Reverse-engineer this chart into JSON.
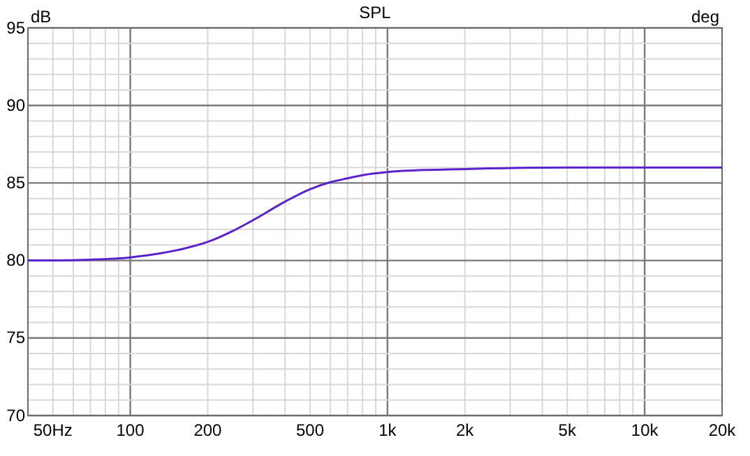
{
  "chart_data": {
    "type": "line",
    "title": "SPL",
    "ylabel": "dB",
    "y2label": "deg",
    "log": "x",
    "grid": true,
    "marker": "none",
    "line_style": "solid",
    "xlim": [
      40,
      20000
    ],
    "ylim": [
      70,
      95
    ],
    "xticks": [
      {
        "value": 40,
        "label": null
      },
      {
        "value": 50,
        "label": "50Hz"
      },
      {
        "value": 60,
        "label": null
      },
      {
        "value": 70,
        "label": null
      },
      {
        "value": 80,
        "label": null
      },
      {
        "value": 90,
        "label": null
      },
      100,
      {
        "value": 200,
        "label": "200"
      },
      {
        "value": 300,
        "label": null
      },
      {
        "value": 400,
        "label": null
      },
      500,
      {
        "value": 600,
        "label": null
      },
      {
        "value": 700,
        "label": null
      },
      {
        "value": 800,
        "label": null
      },
      {
        "value": 900,
        "label": null
      },
      {
        "value": 1000,
        "label": "1k"
      },
      {
        "value": 2000,
        "label": "2k"
      },
      {
        "value": 3000,
        "label": null
      },
      {
        "value": 4000,
        "label": null
      },
      {
        "value": 5000,
        "label": "5k"
      },
      {
        "value": 6000,
        "label": null
      },
      {
        "value": 7000,
        "label": null
      },
      {
        "value": 8000,
        "label": null
      },
      {
        "value": 9000,
        "label": null
      },
      {
        "value": 10000,
        "label": "10k"
      },
      {
        "value": 20000,
        "label": "20k"
      }
    ],
    "yticks": [
      70,
      {
        "value": 71,
        "label": null
      },
      {
        "value": 72,
        "label": null
      },
      {
        "value": 73,
        "label": null
      },
      {
        "value": 74,
        "label": null
      },
      75,
      {
        "value": 76,
        "label": null
      },
      {
        "value": 77,
        "label": null
      },
      {
        "value": 78,
        "label": null
      },
      {
        "value": 79,
        "label": null
      },
      80,
      {
        "value": 81,
        "label": null
      },
      {
        "value": 82,
        "label": null
      },
      {
        "value": 83,
        "label": null
      },
      {
        "value": 84,
        "label": null
      },
      85,
      {
        "value": 86,
        "label": null
      },
      {
        "value": 87,
        "label": null
      },
      {
        "value": 88,
        "label": null
      },
      {
        "value": 89,
        "label": null
      },
      90,
      {
        "value": 91,
        "label": null
      },
      {
        "value": 92,
        "label": null
      },
      {
        "value": 93,
        "label": null
      },
      {
        "value": 94,
        "label": null
      },
      95
    ],
    "x": [
      40,
      50,
      70,
      100,
      130,
      160,
      200,
      250,
      300,
      400,
      500,
      600,
      700,
      800,
      1000,
      1500,
      2000,
      5000,
      10000,
      20000
    ],
    "series": [
      {
        "color": "#5a22cc",
        "values": [
          80.0,
          80.0,
          80.05,
          80.2,
          80.45,
          80.75,
          81.2,
          81.9,
          82.6,
          83.8,
          84.6,
          85.05,
          85.3,
          85.5,
          85.7,
          85.85,
          85.9,
          86.0,
          86.0,
          86.0
        ]
      }
    ]
  }
}
